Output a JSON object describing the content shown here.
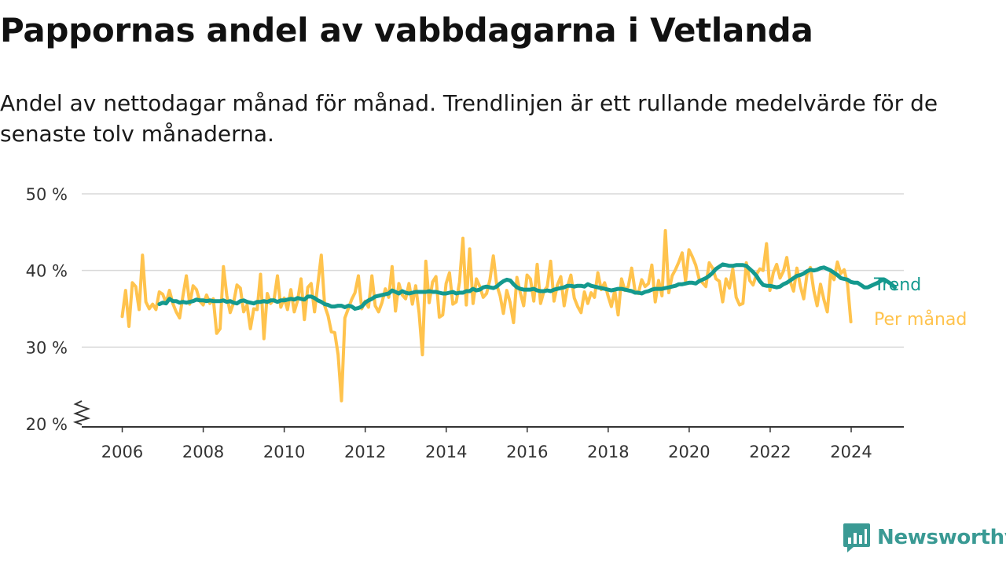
{
  "header": {
    "title": "Pappornas andel av vabbdagarna i Vetlanda",
    "subtitle": "Andel av nettodagar månad för månad. Trendlinjen är ett rullande medelvärde för de senaste tolv månaderna."
  },
  "brand": {
    "name": "Newsworthy",
    "icon": "newsworthy-chart-bubble-icon",
    "color": "#3a9a94"
  },
  "colors": {
    "per_month": "#ffc34d",
    "trend": "#14998e",
    "grid": "#d9d9d9",
    "axis": "#333333"
  },
  "chart_data": {
    "type": "line",
    "title": "Pappornas andel av vabbdagarna i Vetlanda",
    "xlabel": "",
    "ylabel": "",
    "xlim": [
      2005,
      2025.3
    ],
    "ylim": [
      20,
      50
    ],
    "y_axis_break": true,
    "grid": true,
    "x_ticks": [
      2006,
      2008,
      2010,
      2012,
      2014,
      2016,
      2018,
      2020,
      2022,
      2024
    ],
    "x_tick_labels": [
      "2006",
      "2008",
      "2010",
      "2012",
      "2014",
      "2016",
      "2018",
      "2020",
      "2022",
      "2024"
    ],
    "y_ticks": [
      20,
      30,
      40,
      50
    ],
    "y_tick_labels": [
      "20 %",
      "30 %",
      "40 %",
      "50 %"
    ],
    "series": [
      {
        "name": "Per månad",
        "color": "#ffc34d",
        "x_start": 2006.0,
        "x_step": 0.0833,
        "values": [
          34.0,
          37.4,
          32.7,
          38.4,
          37.9,
          34.9,
          42.0,
          35.9,
          35.0,
          35.6,
          34.9,
          37.2,
          36.9,
          35.8,
          37.4,
          35.7,
          34.6,
          33.8,
          36.7,
          39.3,
          35.6,
          38.0,
          37.5,
          36.0,
          35.5,
          36.8,
          35.7,
          36.3,
          31.8,
          32.4,
          40.5,
          36.7,
          34.5,
          35.8,
          38.1,
          37.7,
          34.6,
          35.5,
          32.4,
          35.0,
          34.9,
          39.5,
          31.1,
          37.0,
          35.7,
          36.2,
          39.3,
          35.2,
          36.4,
          34.9,
          37.5,
          34.6,
          36.1,
          38.9,
          33.6,
          37.8,
          38.3,
          34.6,
          38.3,
          42.0,
          35.4,
          34.1,
          32.0,
          31.9,
          29.0,
          23.0,
          33.8,
          35.0,
          36.2,
          37.1,
          39.3,
          35.0,
          36.0,
          35.2,
          39.3,
          35.4,
          34.6,
          35.8,
          37.6,
          36.5,
          40.5,
          34.7,
          38.3,
          36.8,
          36.3,
          38.3,
          35.6,
          38.0,
          34.5,
          29.0,
          41.2,
          35.8,
          38.5,
          39.2,
          33.9,
          34.2,
          38.3,
          39.7,
          35.6,
          35.9,
          38.5,
          44.2,
          35.5,
          42.8,
          35.7,
          38.9,
          37.9,
          36.5,
          37.0,
          38.8,
          41.9,
          38.1,
          36.7,
          34.4,
          37.4,
          35.8,
          33.2,
          39.1,
          37.1,
          35.4,
          39.4,
          38.9,
          36.0,
          40.8,
          35.7,
          37.3,
          37.9,
          41.2,
          36.0,
          38.1,
          39.2,
          35.4,
          37.9,
          39.4,
          36.4,
          35.3,
          34.5,
          37.2,
          35.7,
          37.1,
          36.5,
          39.7,
          37.5,
          38.4,
          36.7,
          35.3,
          37.4,
          34.2,
          38.9,
          37.4,
          37.9,
          40.3,
          37.4,
          37.0,
          38.8,
          37.9,
          38.3,
          40.7,
          35.9,
          38.7,
          36.7,
          45.2,
          37.1,
          39.3,
          40.1,
          41.1,
          42.3,
          38.6,
          42.7,
          41.8,
          40.7,
          38.9,
          38.4,
          37.9,
          41.0,
          40.3,
          38.9,
          38.6,
          35.9,
          38.9,
          37.7,
          40.2,
          36.5,
          35.5,
          35.7,
          41.0,
          38.7,
          38.1,
          39.5,
          40.2,
          40.0,
          43.5,
          37.4,
          39.7,
          40.8,
          39.0,
          39.9,
          41.7,
          38.6,
          37.3,
          40.3,
          38.0,
          36.3,
          39.5,
          40.4,
          37.4,
          35.4,
          38.2,
          36.2,
          34.6,
          39.6,
          38.8,
          41.1,
          39.6,
          40.1,
          38.2,
          33.3
        ]
      },
      {
        "name": "Trend",
        "color": "#14998e",
        "x_start": 2006.9167,
        "x_step": 0.0833,
        "values": [
          35.6,
          35.8,
          35.7,
          36.3,
          36.0,
          36.0,
          35.8,
          35.9,
          35.8,
          35.9,
          36.0,
          36.2,
          36.1,
          36.1,
          36.0,
          36.1,
          36.0,
          36.0,
          36.0,
          36.1,
          35.9,
          36.0,
          35.8,
          35.7,
          36.0,
          36.1,
          35.9,
          35.8,
          35.7,
          35.9,
          35.9,
          36.0,
          35.9,
          36.1,
          36.1,
          35.9,
          36.1,
          36.1,
          36.2,
          36.3,
          36.2,
          36.4,
          36.3,
          36.2,
          36.6,
          36.6,
          36.4,
          36.1,
          35.9,
          35.6,
          35.5,
          35.3,
          35.3,
          35.4,
          35.4,
          35.2,
          35.4,
          35.3,
          35.0,
          35.1,
          35.3,
          35.8,
          36.1,
          36.3,
          36.6,
          36.7,
          36.8,
          36.9,
          37.0,
          37.4,
          37.2,
          37.0,
          37.3,
          37.1,
          37.0,
          37.1,
          37.2,
          37.2,
          37.2,
          37.2,
          37.3,
          37.2,
          37.2,
          37.1,
          37.0,
          37.0,
          37.1,
          37.2,
          37.0,
          37.1,
          37.1,
          37.3,
          37.3,
          37.6,
          37.4,
          37.5,
          37.8,
          37.9,
          37.8,
          37.7,
          37.9,
          38.3,
          38.6,
          38.8,
          38.7,
          38.2,
          37.8,
          37.6,
          37.5,
          37.5,
          37.5,
          37.6,
          37.4,
          37.3,
          37.3,
          37.4,
          37.3,
          37.5,
          37.6,
          37.7,
          37.8,
          38.0,
          38.0,
          37.9,
          38.0,
          38.0,
          37.9,
          38.2,
          38.0,
          37.9,
          37.8,
          37.7,
          37.6,
          37.5,
          37.4,
          37.5,
          37.6,
          37.6,
          37.5,
          37.4,
          37.3,
          37.1,
          37.1,
          37.0,
          37.2,
          37.3,
          37.5,
          37.6,
          37.6,
          37.6,
          37.7,
          37.8,
          37.9,
          38.0,
          38.2,
          38.2,
          38.3,
          38.4,
          38.4,
          38.3,
          38.6,
          38.8,
          39.0,
          39.3,
          39.7,
          40.2,
          40.5,
          40.8,
          40.7,
          40.6,
          40.6,
          40.7,
          40.7,
          40.7,
          40.6,
          40.2,
          39.8,
          39.3,
          38.6,
          38.1,
          38.0,
          38.0,
          37.9,
          37.8,
          37.9,
          38.2,
          38.4,
          38.7,
          39.0,
          39.3,
          39.4,
          39.6,
          39.9,
          40.1,
          40.0,
          40.1,
          40.3,
          40.4,
          40.2,
          40.0,
          39.7,
          39.4,
          39.0,
          38.9,
          38.8,
          38.5,
          38.4,
          38.4,
          38.1,
          37.8,
          37.8,
          38.0,
          38.2,
          38.4,
          38.7,
          38.8,
          38.5,
          38.2,
          37.8
        ]
      }
    ]
  }
}
